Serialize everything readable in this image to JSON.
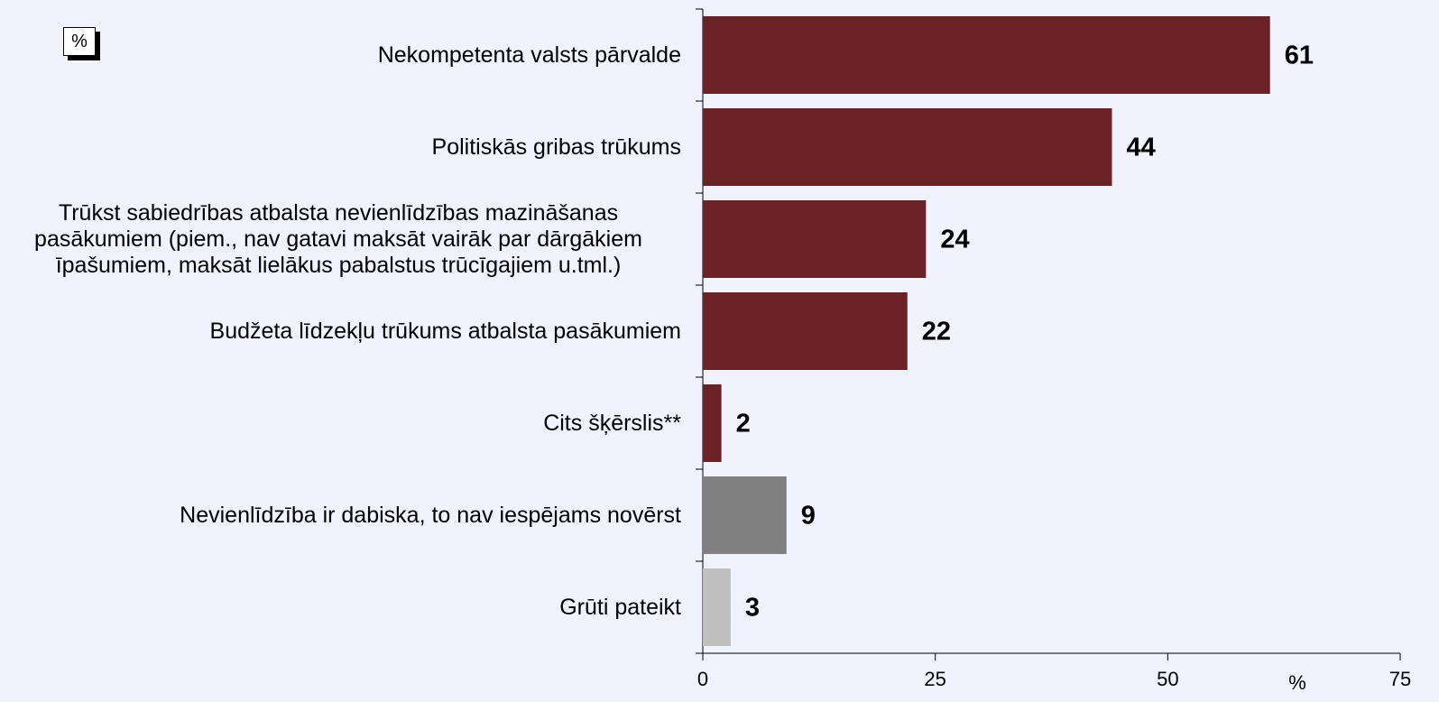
{
  "chart_data": {
    "type": "barh",
    "unit_box": "%",
    "xlabel": "%",
    "categories": [
      "Nekompetenta valsts pārvalde",
      "Politiskās gribas trūkums",
      "Trūkst sabiedrības atbalsta nevienlīdzības mazināšanas pasākumiem (piem., nav gatavi maksāt vairāk par dārgākiem īpašumiem, maksāt lielākus pabalstus trūcīgajiem u.tml.)",
      "Budžeta līdzekļu trūkums atbalsta pasākumiem",
      "Cits šķērslis**",
      "Nevienlīdzība ir dabiska, to nav iespējams novērst",
      "Grūti pateikt"
    ],
    "values": [
      61,
      44,
      24,
      22,
      2,
      9,
      3
    ],
    "colors": [
      "#6b2224",
      "#6b2224",
      "#6b2224",
      "#6b2224",
      "#6b2224",
      "#808080",
      "#c0c0c0"
    ],
    "xlim": [
      0,
      75
    ],
    "xticks": [
      0,
      25,
      50,
      75
    ]
  }
}
